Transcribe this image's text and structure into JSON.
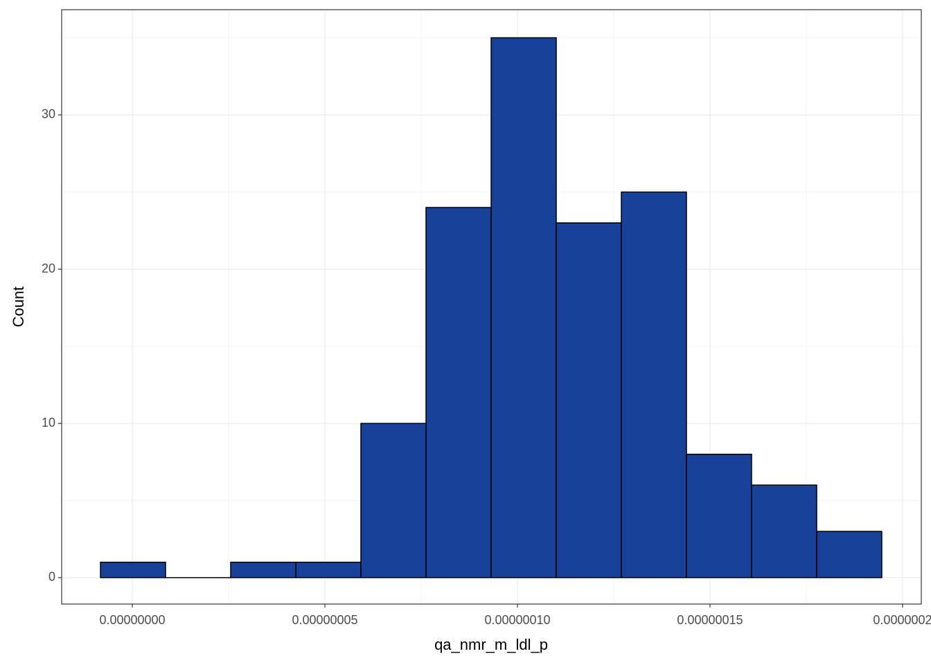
{
  "chart_data": {
    "type": "histogram",
    "xlabel": "qa_nmr_m_ldl_p",
    "ylabel": "Count",
    "bins": [
      -8.27e-09,
      8.63e-09,
      2.554e-08,
      4.245e-08,
      5.935e-08,
      7.626e-08,
      9.317e-08,
      1.1007e-07,
      1.2698e-07,
      1.4388e-07,
      1.6079e-07,
      1.777e-07,
      1.946e-07
    ],
    "counts": [
      1,
      0,
      1,
      1,
      10,
      24,
      35,
      23,
      25,
      8,
      6,
      3
    ],
    "color": "#18419a",
    "edgecolor": "#000000",
    "xlim": [
      -1.835e-08,
      2.0486e-07
    ],
    "xticks": [
      {
        "value": 0,
        "label": "0.00000000"
      },
      {
        "value": 5e-08,
        "label": "0.00000005"
      },
      {
        "value": 1e-07,
        "label": "0.00000010"
      },
      {
        "value": 1.5e-07,
        "label": "0.00000015"
      },
      {
        "value": 2e-07,
        "label": "0.0000002"
      }
    ],
    "minor_xticks": [
      -2.5e-08,
      2.5e-08,
      7.5e-08,
      1.25e-07,
      1.75e-07
    ],
    "ylim": [
      -1.71,
      36.82
    ],
    "yticks": [
      0,
      10,
      20,
      30
    ],
    "minor_yticks": [
      5,
      15,
      25,
      35
    ],
    "grid": true
  }
}
